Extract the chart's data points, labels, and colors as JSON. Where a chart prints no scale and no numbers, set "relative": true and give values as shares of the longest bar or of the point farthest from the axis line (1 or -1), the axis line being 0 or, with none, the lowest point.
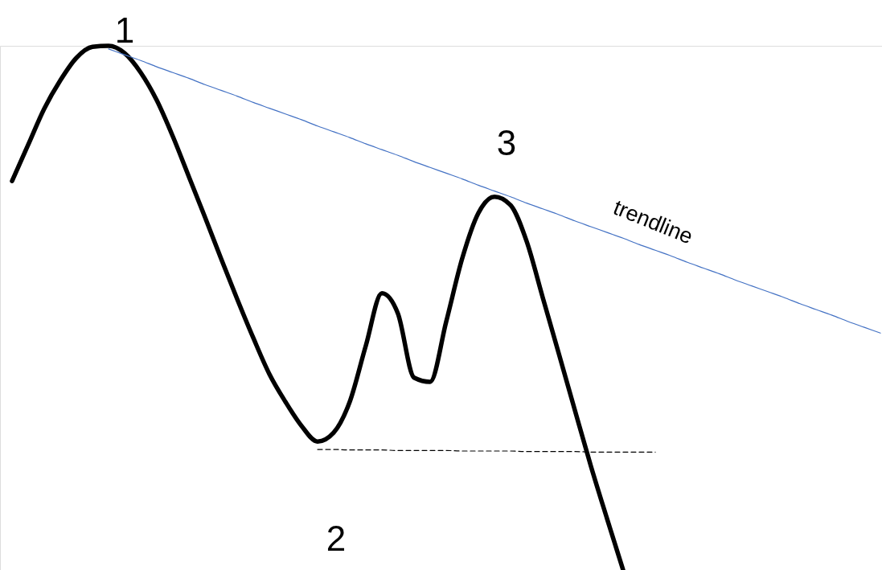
{
  "chart_data": {
    "type": "line",
    "relative": true,
    "categories": [
      null,
      null,
      null,
      null,
      null,
      null,
      null,
      null,
      null,
      null,
      null,
      null,
      null,
      null,
      null,
      null,
      null,
      null,
      null,
      null,
      null,
      null,
      null,
      null,
      null,
      null,
      null,
      null,
      null,
      null,
      null,
      null,
      null,
      null,
      null,
      null,
      null,
      null,
      null,
      null,
      null,
      null,
      null,
      null,
      null,
      null,
      null,
      null,
      null,
      null,
      null,
      null,
      null,
      null,
      null
    ],
    "series": [
      {
        "color": "#000000",
        "line_style": "solid",
        "values": [
          0.742,
          0.811,
          0.88,
          0.934,
          0.977,
          0.998,
          1.0,
          0.986,
          0.949,
          0.896,
          0.827,
          0.75,
          0.673,
          0.594,
          0.517,
          0.443,
          0.374,
          0.321,
          0.275,
          0.245,
          0.262,
          0.321,
          0.428,
          0.528,
          0.489,
          0.367,
          0.359,
          0.474,
          0.595,
          0.681,
          0.712,
          0.696,
          0.627,
          0.52,
          0.413,
          0.305,
          0.198,
          0.098,
          0,
          null,
          null,
          null,
          null,
          null,
          null,
          null,
          null,
          null,
          null,
          null,
          null,
          null,
          null,
          null,
          null
        ]
      },
      {
        "color": "#4472c4",
        "line_style": "solid",
        "values": [
          null,
          null,
          null,
          null,
          null,
          null,
          0.994,
          0.983,
          0.972,
          0.96,
          0.949,
          0.938,
          0.926,
          0.915,
          0.904,
          0.892,
          0.881,
          0.87,
          0.859,
          0.847,
          0.836,
          0.825,
          0.813,
          0.802,
          0.791,
          0.779,
          0.768,
          0.757,
          0.746,
          0.734,
          0.723,
          0.712,
          0.7,
          0.689,
          0.678,
          0.666,
          0.655,
          0.644,
          0.633,
          0.621,
          0.61,
          0.599,
          0.587,
          0.576,
          0.565,
          0.553,
          0.542,
          0.531,
          0.52,
          0.508,
          0.497,
          0.486,
          0.474,
          0.463,
          0.452
        ]
      },
      {
        "color": "#000000",
        "line_style": "dashed",
        "values": [
          null,
          null,
          null,
          null,
          null,
          null,
          null,
          null,
          null,
          null,
          null,
          null,
          null,
          null,
          null,
          null,
          null,
          null,
          null,
          0.23,
          0.23,
          0.229,
          0.229,
          0.229,
          0.228,
          0.228,
          0.228,
          0.228,
          0.227,
          0.227,
          0.227,
          0.227,
          0.226,
          0.226,
          0.226,
          0.226,
          0.225,
          0.225,
          0.225,
          0.225,
          0.225,
          null,
          null,
          null,
          null,
          null,
          null,
          null,
          null,
          null,
          null,
          null,
          null,
          null,
          null
        ]
      }
    ],
    "annotations": [
      "1",
      "3",
      "2",
      "trendline"
    ]
  }
}
